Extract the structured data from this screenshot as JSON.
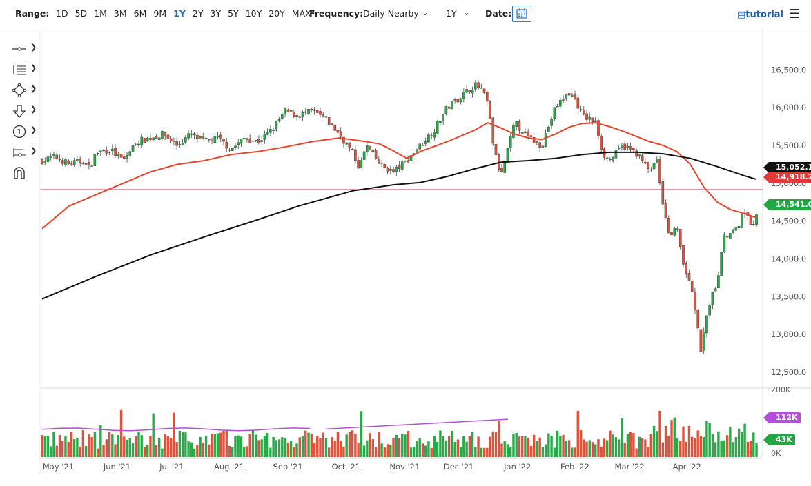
{
  "toolbar": {
    "range_label": "Range:",
    "ranges": [
      "1D",
      "5D",
      "1M",
      "3M",
      "6M",
      "9M",
      "1Y",
      "2Y",
      "3Y",
      "5Y",
      "10Y",
      "20Y",
      "MAX"
    ],
    "active_range": "1Y",
    "frequency_label": "Frequency:",
    "frequency_value": "Daily Nearby",
    "period_value": "1Y",
    "date_label": "Date:",
    "tutorial_label": "tutorial"
  },
  "drawing_tools": [
    {
      "name": "line-tool-icon"
    },
    {
      "name": "fibonacci-tool-icon"
    },
    {
      "name": "shape-tool-icon"
    },
    {
      "name": "arrow-tool-icon"
    },
    {
      "name": "annotation-tool-icon"
    },
    {
      "name": "measure-tool-icon"
    },
    {
      "name": "magnet-tool-icon"
    }
  ],
  "colors": {
    "up": "#2aa84a",
    "down": "#e0513b",
    "ma_fast": "#e8452e",
    "ma_slow": "#111111",
    "hline": "#e07a90",
    "vol_avg": "#b44fd8",
    "tag_black": "#111111",
    "tag_red": "#e33a3a",
    "tag_green": "#23a745",
    "tag_purple": "#b44fd8"
  },
  "chart_data": {
    "type": "candlestick",
    "y_ticks": [
      "16,500.0",
      "16,000.0",
      "15,500.0",
      "15,000.0",
      "14,500.0",
      "14,000.0",
      "13,500.0",
      "13,000.0",
      "12,500.0"
    ],
    "y_tick_values": [
      16500,
      16000,
      15500,
      15000,
      14500,
      14000,
      13500,
      13000,
      12500
    ],
    "ylim": [
      12300,
      16950
    ],
    "x_ticks": [
      "May '21",
      "Jun '21",
      "Jul '21",
      "Aug '21",
      "Sep '21",
      "Oct '21",
      "Nov '21",
      "Dec '21",
      "Jan '22",
      "Feb '22",
      "Mar '22",
      "Apr '22"
    ],
    "x_tick_days": [
      24,
      111,
      192,
      277,
      364,
      450,
      537,
      617,
      704,
      789,
      870,
      955
    ],
    "horizontal_line": 14918.2,
    "labels": [
      {
        "text": "15,052.1",
        "value": 15052.1,
        "color": "tag_black"
      },
      {
        "text": "14,918.2",
        "value": 14918.2,
        "color": "tag_red"
      },
      {
        "text": "14,541.0",
        "value": 14541.0,
        "color": "tag_green"
      }
    ],
    "closes": [
      [
        0,
        15300
      ],
      [
        20,
        15350
      ],
      [
        40,
        15250
      ],
      [
        60,
        15300
      ],
      [
        70,
        15200
      ],
      [
        80,
        15400
      ],
      [
        100,
        15450
      ],
      [
        120,
        15300
      ],
      [
        140,
        15550
      ],
      [
        160,
        15600
      ],
      [
        180,
        15650
      ],
      [
        200,
        15500
      ],
      [
        220,
        15650
      ],
      [
        240,
        15550
      ],
      [
        260,
        15600
      ],
      [
        280,
        15450
      ],
      [
        300,
        15600
      ],
      [
        320,
        15550
      ],
      [
        340,
        15700
      ],
      [
        360,
        15950
      ],
      [
        380,
        15900
      ],
      [
        400,
        15950
      ],
      [
        420,
        15850
      ],
      [
        440,
        15650
      ],
      [
        460,
        15400
      ],
      [
        470,
        15200
      ],
      [
        480,
        15500
      ],
      [
        500,
        15250
      ],
      [
        520,
        15150
      ],
      [
        540,
        15300
      ],
      [
        560,
        15500
      ],
      [
        580,
        15700
      ],
      [
        600,
        16000
      ],
      [
        620,
        16150
      ],
      [
        640,
        16300
      ],
      [
        650,
        16250
      ],
      [
        660,
        16050
      ],
      [
        670,
        15400
      ],
      [
        680,
        15100
      ],
      [
        700,
        15800
      ],
      [
        720,
        15600
      ],
      [
        740,
        15500
      ],
      [
        760,
        16000
      ],
      [
        780,
        16200
      ],
      [
        790,
        16100
      ],
      [
        800,
        15900
      ],
      [
        820,
        15800
      ],
      [
        830,
        15400
      ],
      [
        840,
        15300
      ],
      [
        860,
        15500
      ],
      [
        880,
        15400
      ],
      [
        900,
        15150
      ],
      [
        910,
        15350
      ],
      [
        920,
        14700
      ],
      [
        930,
        14300
      ],
      [
        940,
        14400
      ],
      [
        950,
        13900
      ],
      [
        960,
        13700
      ],
      [
        970,
        13200
      ],
      [
        975,
        12700
      ],
      [
        985,
        13300
      ],
      [
        1000,
        13700
      ],
      [
        1010,
        14300
      ],
      [
        1020,
        14350
      ],
      [
        1030,
        14400
      ],
      [
        1040,
        14650
      ],
      [
        1050,
        14450
      ],
      [
        1058,
        14541
      ]
    ],
    "ma_fast": [
      [
        0,
        14400
      ],
      [
        40,
        14700
      ],
      [
        80,
        14850
      ],
      [
        120,
        15000
      ],
      [
        160,
        15150
      ],
      [
        200,
        15250
      ],
      [
        240,
        15300
      ],
      [
        280,
        15380
      ],
      [
        320,
        15420
      ],
      [
        360,
        15480
      ],
      [
        400,
        15550
      ],
      [
        440,
        15600
      ],
      [
        480,
        15550
      ],
      [
        500,
        15520
      ],
      [
        520,
        15430
      ],
      [
        540,
        15330
      ],
      [
        560,
        15420
      ],
      [
        600,
        15550
      ],
      [
        640,
        15700
      ],
      [
        660,
        15800
      ],
      [
        680,
        15730
      ],
      [
        700,
        15650
      ],
      [
        720,
        15600
      ],
      [
        740,
        15580
      ],
      [
        760,
        15650
      ],
      [
        780,
        15740
      ],
      [
        800,
        15790
      ],
      [
        820,
        15800
      ],
      [
        840,
        15750
      ],
      [
        860,
        15690
      ],
      [
        880,
        15620
      ],
      [
        900,
        15550
      ],
      [
        920,
        15500
      ],
      [
        940,
        15420
      ],
      [
        960,
        15250
      ],
      [
        980,
        14950
      ],
      [
        1000,
        14750
      ],
      [
        1020,
        14650
      ],
      [
        1040,
        14600
      ],
      [
        1058,
        14545
      ]
    ],
    "ma_slow": [
      [
        0,
        13470
      ],
      [
        80,
        13770
      ],
      [
        160,
        14050
      ],
      [
        240,
        14290
      ],
      [
        320,
        14520
      ],
      [
        380,
        14700
      ],
      [
        420,
        14800
      ],
      [
        460,
        14900
      ],
      [
        520,
        14980
      ],
      [
        560,
        15010
      ],
      [
        600,
        15090
      ],
      [
        640,
        15190
      ],
      [
        680,
        15280
      ],
      [
        720,
        15300
      ],
      [
        760,
        15330
      ],
      [
        800,
        15380
      ],
      [
        840,
        15410
      ],
      [
        880,
        15410
      ],
      [
        920,
        15390
      ],
      [
        960,
        15330
      ],
      [
        1000,
        15220
      ],
      [
        1040,
        15100
      ],
      [
        1058,
        15052
      ]
    ],
    "volume": {
      "ticks": [
        "200K",
        "0K"
      ],
      "labels": [
        {
          "text": "112K",
          "color": "tag_purple"
        },
        {
          "text": "43K",
          "color": "tag_green"
        }
      ],
      "avg_start": 80,
      "avg_end": 112,
      "last": 43
    }
  }
}
